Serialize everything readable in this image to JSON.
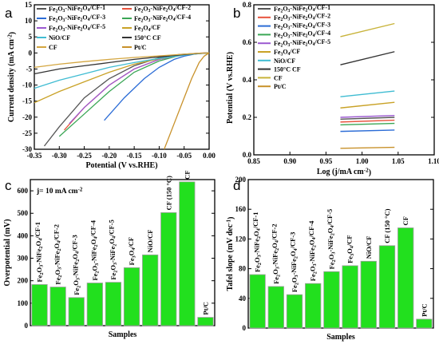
{
  "chart_data": [
    {
      "panel": "a",
      "type": "line",
      "xlabel": "Potential (V vs.RHE)",
      "ylabel": "Current density (mA cm⁻²)",
      "xlim": [
        -0.35,
        0.0
      ],
      "ylim": [
        -30,
        15
      ],
      "xticks": [
        "-0.35",
        "-0.30",
        "-0.25",
        "-0.20",
        "-0.15",
        "-0.10",
        "-0.05",
        "0.00"
      ],
      "yticks": [
        "-30",
        "-25",
        "-20",
        "-15",
        "-10",
        "-5",
        "0",
        "5",
        "10",
        "15"
      ],
      "legend": "top",
      "series": [
        {
          "name": "Fe₂O₃-NiFe₂O₄/CF-1",
          "color": "#555555",
          "x": [
            -0.33,
            -0.3,
            -0.25,
            -0.2,
            -0.15,
            -0.1,
            -0.06,
            -0.02,
            0.0
          ],
          "y": [
            -29,
            -23,
            -14,
            -8,
            -4,
            -1.5,
            -0.5,
            -0.1,
            0
          ]
        },
        {
          "name": "Fe₂O₃-NiFe₂O₄/CF-2",
          "color": "#e8523c",
          "x": [
            -0.29,
            -0.25,
            -0.2,
            -0.15,
            -0.1,
            -0.05,
            -0.02,
            0.0
          ],
          "y": [
            -24,
            -17,
            -10,
            -5,
            -2,
            -0.6,
            -0.1,
            0
          ]
        },
        {
          "name": "Fe₂O₃-NiFe₂O₄/CF-3",
          "color": "#2b6cd6",
          "x": [
            -0.21,
            -0.17,
            -0.13,
            -0.1,
            -0.07,
            -0.05,
            -0.03,
            -0.01,
            0.0
          ],
          "y": [
            -21,
            -14,
            -8,
            -4.5,
            -2,
            -1,
            -0.4,
            -0.1,
            0
          ]
        },
        {
          "name": "Fe₂O₃-NiFe₂O₄/CF-4",
          "color": "#3aa655",
          "x": [
            -0.3,
            -0.25,
            -0.2,
            -0.15,
            -0.1,
            -0.06,
            -0.03,
            0.0
          ],
          "y": [
            -26,
            -19,
            -12,
            -6,
            -2.5,
            -0.8,
            -0.2,
            0
          ]
        },
        {
          "name": "Fe₂O₃-NiFe₂O₄/CF-5",
          "color": "#9b59d0",
          "x": [
            -0.28,
            -0.25,
            -0.2,
            -0.15,
            -0.1,
            -0.05,
            -0.02,
            0.0
          ],
          "y": [
            -22,
            -17,
            -10,
            -5,
            -2,
            -0.5,
            -0.1,
            0
          ]
        },
        {
          "name": "Fe₃O₄/CF",
          "color": "#c9a227",
          "x": [
            -0.35,
            -0.3,
            -0.25,
            -0.2,
            -0.15,
            -0.1,
            -0.05,
            -0.02,
            0.0
          ],
          "y": [
            -15.5,
            -12,
            -9,
            -6,
            -3.5,
            -1.8,
            -0.6,
            -0.2,
            0
          ]
        },
        {
          "name": "NiO/CF",
          "color": "#3fbcd2",
          "x": [
            -0.35,
            -0.3,
            -0.25,
            -0.2,
            -0.15,
            -0.1,
            -0.05,
            -0.02,
            0.0
          ],
          "y": [
            -11,
            -8.5,
            -6.5,
            -4.5,
            -3,
            -1.7,
            -0.7,
            -0.2,
            0
          ]
        },
        {
          "name": "150°C CF",
          "color": "#333333",
          "x": [
            -0.35,
            -0.3,
            -0.25,
            -0.2,
            -0.15,
            -0.1,
            -0.05,
            -0.02,
            0.0
          ],
          "y": [
            -6.5,
            -5,
            -4,
            -3,
            -2,
            -1.2,
            -0.5,
            -0.15,
            0
          ]
        },
        {
          "name": "CF",
          "color": "#d4a640",
          "x": [
            -0.35,
            -0.3,
            -0.25,
            -0.2,
            -0.15,
            -0.1,
            -0.05,
            -0.02,
            0.0
          ],
          "y": [
            -4.5,
            -3.5,
            -2.7,
            -2,
            -1.4,
            -0.9,
            -0.4,
            -0.1,
            0
          ]
        },
        {
          "name": "Pt/C",
          "color": "#c8912a",
          "x": [
            -0.09,
            -0.07,
            -0.05,
            -0.035,
            -0.02,
            -0.01,
            0.0
          ],
          "y": [
            -30,
            -22,
            -14,
            -8,
            -3,
            -1,
            0
          ]
        }
      ]
    },
    {
      "panel": "b",
      "type": "line",
      "xlabel": "Log (j/mA cm⁻²)",
      "ylabel": "Potential (V vs.RHE)",
      "xlim": [
        0.85,
        1.1
      ],
      "ylim": [
        0.0,
        0.8
      ],
      "xticks": [
        "0.85",
        "0.90",
        "0.95",
        "1.00",
        "1.05",
        "1.10"
      ],
      "yticks": [
        "0.0",
        "0.2",
        "0.4",
        "0.6",
        "0.8"
      ],
      "legend": "upper-left",
      "series": [
        {
          "name": "Fe₂O₃-NiFe₂O₄/CF-1",
          "color": "#555555",
          "x": [
            0.97,
            1.045
          ],
          "y": [
            0.19,
            0.2
          ]
        },
        {
          "name": "Fe₂O₃-NiFe₂O₄/CF-2",
          "color": "#e8523c",
          "x": [
            0.97,
            1.045
          ],
          "y": [
            0.175,
            0.185
          ]
        },
        {
          "name": "Fe₂O₃-NiFe₂O₄/CF-3",
          "color": "#2b6cd6",
          "x": [
            0.97,
            1.045
          ],
          "y": [
            0.125,
            0.132
          ]
        },
        {
          "name": "Fe₂O₃-NiFe₂O₄/CF-4",
          "color": "#3aa655",
          "x": [
            0.97,
            1.045
          ],
          "y": [
            0.16,
            0.168
          ]
        },
        {
          "name": "Fe₂O₃-NiFe₂O₄/CF-5",
          "color": "#9b59d0",
          "x": [
            0.97,
            1.045
          ],
          "y": [
            0.2,
            0.21
          ]
        },
        {
          "name": "Fe₃O₄/CF",
          "color": "#c9a227",
          "x": [
            0.97,
            1.045
          ],
          "y": [
            0.25,
            0.28
          ]
        },
        {
          "name": "NiO/CF",
          "color": "#3fbcd2",
          "x": [
            0.97,
            1.045
          ],
          "y": [
            0.31,
            0.34
          ]
        },
        {
          "name": "150°C CF",
          "color": "#333333",
          "x": [
            0.97,
            1.045
          ],
          "y": [
            0.48,
            0.55
          ]
        },
        {
          "name": "CF",
          "color": "#c8b33a",
          "x": [
            0.97,
            1.045
          ],
          "y": [
            0.63,
            0.7
          ]
        },
        {
          "name": "Pt/C",
          "color": "#c8912a",
          "x": [
            0.97,
            1.045
          ],
          "y": [
            0.035,
            0.04
          ]
        }
      ]
    },
    {
      "panel": "c",
      "type": "bar",
      "annotation": "j= 10 mA cm⁻²",
      "xlabel": "Samples",
      "ylabel": "Overpotential (mV)",
      "ylim": [
        0,
        650
      ],
      "yticks": [
        "0",
        "100",
        "200",
        "300",
        "400",
        "500",
        "600"
      ],
      "color": "#22e01e",
      "categories": [
        "Fe₂O₃-NiFe₂O₄/CF-1",
        "Fe₂O₃-NiFe₂O₄/CF-2",
        "Fe₂O₃-NiFe₂O₄/CF-3",
        "Fe₂O₃-NiFe₂O₄/CF-4",
        "Fe₂O₃-NiFe₂O₄/CF-5",
        "Fe₃O₄/CF",
        "NiO/CF",
        "CF (150 °C)",
        "CF",
        "Pt/C"
      ],
      "values": [
        183,
        172,
        125,
        190,
        193,
        258,
        315,
        503,
        640,
        37
      ]
    },
    {
      "panel": "d",
      "type": "bar",
      "xlabel": "Samples",
      "ylabel": "Tafel slope (mV dec⁻¹)",
      "ylim": [
        0,
        200
      ],
      "yticks": [
        "0",
        "40",
        "80",
        "120",
        "160",
        "200"
      ],
      "color": "#22e01e",
      "categories": [
        "Fe₂O₃-NiFe₂O₄/CF-1",
        "Fe₂O₃-NiFe₂O₄/CF-2",
        "Fe₂O₃-NiFe₂O₄/CF-3",
        "Fe₂O₃-NiFe₂O₄/CF-4",
        "Fe₂O₃-NiFe₂O₄/CF-5",
        "Fe₃O₄/CF",
        "NiO/CF",
        "CF (150 °C)",
        "CF",
        "Pt/C"
      ],
      "values": [
        72,
        56,
        45,
        60,
        76,
        84,
        90,
        111,
        135,
        12
      ]
    }
  ]
}
